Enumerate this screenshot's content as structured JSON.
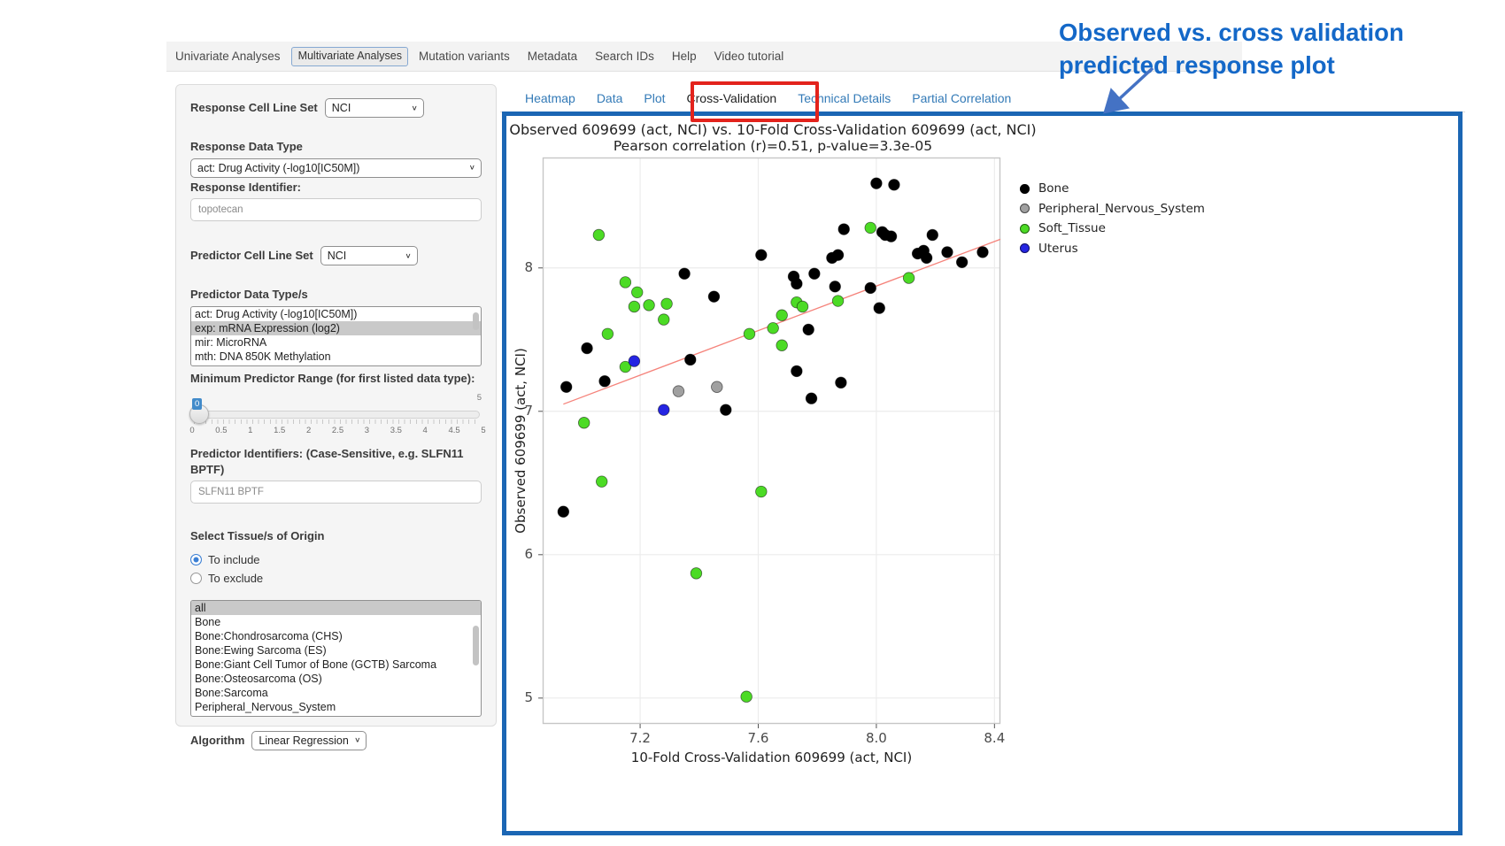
{
  "nav": {
    "items": [
      {
        "label": "Univariate Analyses",
        "selected": false
      },
      {
        "label": "Multivariate Analyses",
        "selected": true
      },
      {
        "label": "Mutation variants",
        "selected": false
      },
      {
        "label": "Metadata",
        "selected": false
      },
      {
        "label": "Search IDs",
        "selected": false
      },
      {
        "label": "Help",
        "selected": false
      },
      {
        "label": "Video tutorial",
        "selected": false
      }
    ]
  },
  "sidebar": {
    "response_cell_line_set": {
      "label": "Response Cell Line Set",
      "value": "NCI"
    },
    "response_data_type": {
      "label": "Response Data Type",
      "value": "act: Drug Activity (-log10[IC50M])"
    },
    "response_identifier": {
      "label": "Response Identifier:",
      "value": "topotecan"
    },
    "predictor_cell_line_set": {
      "label": "Predictor Cell Line Set",
      "value": "NCI"
    },
    "predictor_data_types": {
      "label": "Predictor Data Type/s",
      "options": [
        "act: Drug Activity (-log10[IC50M])",
        "exp: mRNA Expression (log2)",
        "mir: MicroRNA",
        "mth: DNA 850K Methylation"
      ],
      "selected": "exp: mRNA Expression (log2)"
    },
    "min_predictor_range": {
      "label": "Minimum Predictor Range (for first listed data type):",
      "value": "0",
      "max_label": "5",
      "ticks": [
        "0",
        "0.5",
        "1",
        "1.5",
        "2",
        "2.5",
        "3",
        "3.5",
        "4",
        "4.5",
        "5"
      ]
    },
    "predictor_identifiers": {
      "label": "Predictor Identifiers: (Case-Sensitive, e.g. SLFN11 BPTF)",
      "value": "SLFN11 BPTF"
    },
    "tissue": {
      "label": "Select Tissue/s of Origin",
      "radios": [
        {
          "label": "To include",
          "selected": true
        },
        {
          "label": "To exclude",
          "selected": false
        }
      ],
      "options": [
        "all",
        "Bone",
        "Bone:Chondrosarcoma (CHS)",
        "Bone:Ewing Sarcoma (ES)",
        "Bone:Giant Cell Tumor of Bone (GCTB) Sarcoma",
        "Bone:Osteosarcoma (OS)",
        "Bone:Sarcoma",
        "Peripheral_Nervous_System"
      ],
      "selected": "all"
    },
    "algorithm": {
      "label": "Algorithm",
      "value": "Linear Regression"
    }
  },
  "tabs": {
    "items": [
      {
        "label": "Heatmap",
        "active": false
      },
      {
        "label": "Data",
        "active": false
      },
      {
        "label": "Plot",
        "active": false
      },
      {
        "label": "Cross-Validation",
        "active": true
      },
      {
        "label": "Technical Details",
        "active": false
      },
      {
        "label": "Partial Correlation",
        "active": false
      }
    ]
  },
  "modebar": {
    "icons": [
      "home-icon",
      "zoom-in-icon",
      "grid-icon",
      "pan-icon"
    ]
  },
  "annotation": {
    "line1": "Observed vs. cross validation",
    "line2": "predicted response plot",
    "text_color": "#1468c8",
    "arrow_color": "#4472c4",
    "highlight_box_color": "#e3231c",
    "container_border_color": "#1b66b4"
  },
  "chart_data": {
    "type": "scatter",
    "title": "Observed 609699 (act, NCI) vs. 10-Fold Cross-Validation 609699 (act, NCI)",
    "subtitle": "Pearson correlation (r)=0.51, p-value=3.3e-05",
    "xlabel": "10-Fold Cross-Validation 609699 (act, NCI)",
    "ylabel": "Observed 609699 (act, NCI)",
    "xlim": [
      6.87,
      8.42
    ],
    "ylim": [
      4.82,
      8.77
    ],
    "xticks": [
      7.2,
      7.6,
      8.0,
      8.4
    ],
    "yticks": [
      5,
      6,
      7,
      8
    ],
    "grid": true,
    "legend_position": "right",
    "series": [
      {
        "name": "Bone",
        "color": "#000000",
        "points": [
          [
            6.94,
            6.3
          ],
          [
            6.95,
            7.17
          ],
          [
            7.02,
            7.44
          ],
          [
            7.08,
            7.21
          ],
          [
            7.35,
            7.96
          ],
          [
            7.37,
            7.36
          ],
          [
            7.45,
            7.8
          ],
          [
            7.49,
            7.01
          ],
          [
            7.61,
            8.09
          ],
          [
            7.72,
            7.94
          ],
          [
            7.73,
            7.89
          ],
          [
            7.73,
            7.28
          ],
          [
            7.77,
            7.57
          ],
          [
            7.78,
            7.09
          ],
          [
            7.79,
            7.96
          ],
          [
            7.85,
            8.07
          ],
          [
            7.86,
            7.87
          ],
          [
            7.87,
            8.09
          ],
          [
            7.88,
            7.2
          ],
          [
            7.89,
            8.27
          ],
          [
            7.98,
            7.86
          ],
          [
            8.0,
            8.59
          ],
          [
            8.01,
            7.72
          ],
          [
            8.02,
            8.25
          ],
          [
            8.03,
            8.23
          ],
          [
            8.05,
            8.22
          ],
          [
            8.06,
            8.58
          ],
          [
            8.14,
            8.1
          ],
          [
            8.16,
            8.12
          ],
          [
            8.17,
            8.07
          ],
          [
            8.19,
            8.23
          ],
          [
            8.24,
            8.11
          ],
          [
            8.29,
            8.04
          ],
          [
            8.36,
            8.11
          ]
        ]
      },
      {
        "name": "Peripheral_Nervous_System",
        "color": "#a0a0a0",
        "points": [
          [
            7.33,
            7.14
          ],
          [
            7.46,
            7.17
          ]
        ]
      },
      {
        "name": "Soft_Tissue",
        "color": "#4cdb25",
        "points": [
          [
            7.01,
            6.92
          ],
          [
            7.06,
            8.23
          ],
          [
            7.07,
            6.51
          ],
          [
            7.09,
            7.54
          ],
          [
            7.15,
            7.9
          ],
          [
            7.15,
            7.31
          ],
          [
            7.18,
            7.73
          ],
          [
            7.19,
            7.83
          ],
          [
            7.23,
            7.74
          ],
          [
            7.28,
            7.64
          ],
          [
            7.29,
            7.75
          ],
          [
            7.39,
            5.87
          ],
          [
            7.56,
            5.01
          ],
          [
            7.57,
            7.54
          ],
          [
            7.61,
            6.44
          ],
          [
            7.65,
            7.58
          ],
          [
            7.68,
            7.67
          ],
          [
            7.68,
            7.46
          ],
          [
            7.73,
            7.76
          ],
          [
            7.75,
            7.73
          ],
          [
            7.87,
            7.77
          ],
          [
            7.98,
            8.28
          ],
          [
            8.11,
            7.93
          ]
        ]
      },
      {
        "name": "Uterus",
        "color": "#2525e2",
        "points": [
          [
            7.18,
            7.35
          ],
          [
            7.28,
            7.01
          ]
        ]
      }
    ],
    "regression_line": {
      "x1": 6.94,
      "y1": 7.05,
      "x2": 8.42,
      "y2": 8.2,
      "color": "#f5837b"
    }
  }
}
